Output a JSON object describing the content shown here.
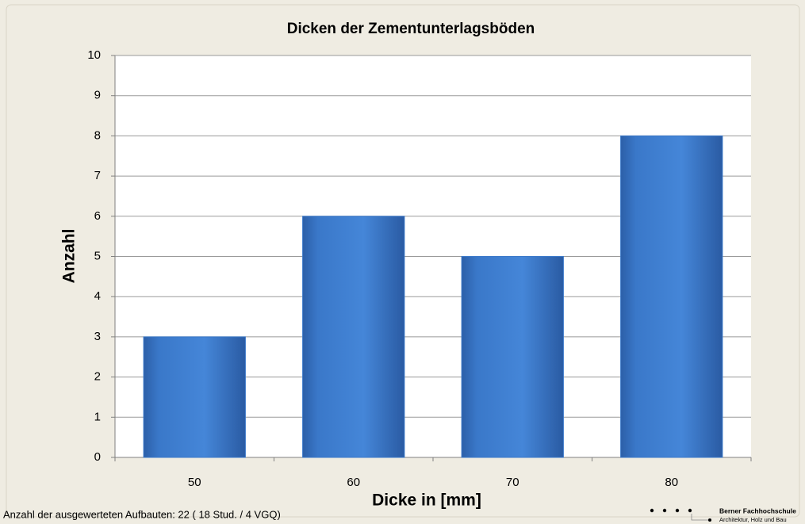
{
  "chart_data": {
    "type": "bar",
    "title": "Dicken der Zementunterlagsböden",
    "x_label": "Dicke in [mm]",
    "y_label": "Anzahl",
    "categories": [
      "50",
      "60",
      "70",
      "80"
    ],
    "values": [
      3,
      6,
      5,
      8
    ],
    "color": "#3a78c9",
    "ylim": [
      0,
      10
    ],
    "yticks": [
      0,
      1,
      2,
      3,
      4,
      5,
      6,
      7,
      8,
      9,
      10
    ],
    "grid": true
  },
  "footnote": "Anzahl der ausgewerteten Aufbauten: 22 ( 18 Stud. / 4 VGQ)",
  "logo": {
    "name": "Berner Fachhochschule",
    "department": "Architektur, Holz und Bau"
  }
}
